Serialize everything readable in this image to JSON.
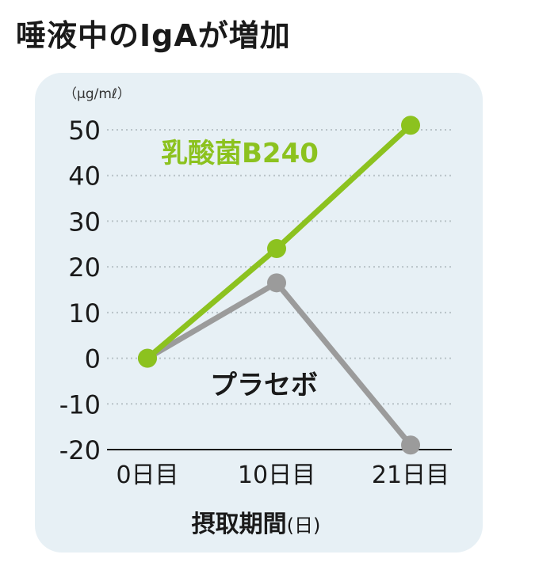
{
  "chart_data": {
    "type": "line",
    "title": "唾液中のIgAが増加",
    "unit_label": "（μg/mℓ）",
    "xlabel": "摂取期間",
    "xlabel_unit": "(日)",
    "categories": [
      "0日目",
      "10日目",
      "21日目"
    ],
    "ylim": [
      -20,
      50
    ],
    "yticks": [
      50,
      40,
      30,
      20,
      10,
      0,
      -10,
      -20
    ],
    "grid": true,
    "series": [
      {
        "name": "乳酸菌B240",
        "values": [
          0,
          24,
          51
        ],
        "color": "#8cc21f"
      },
      {
        "name": "プラセボ",
        "values": [
          0,
          16.5,
          -19
        ],
        "color": "#9b9b9b"
      }
    ]
  }
}
